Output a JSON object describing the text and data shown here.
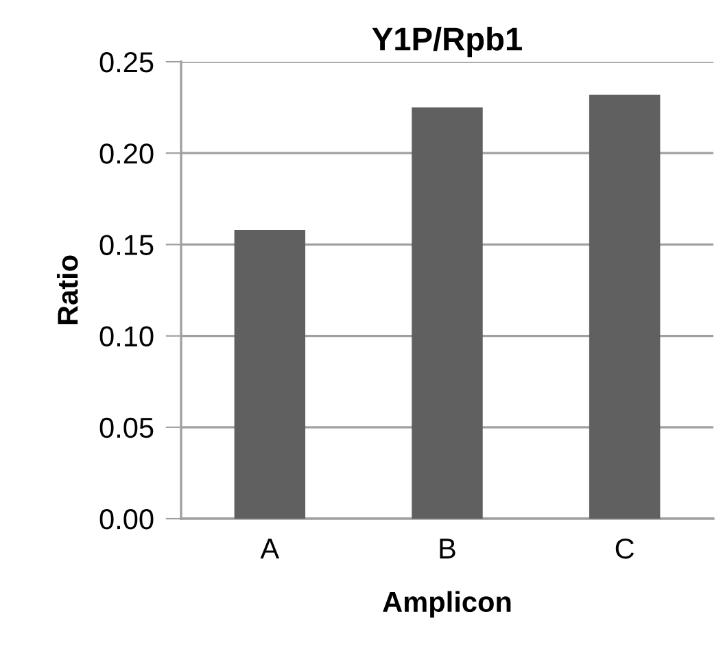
{
  "chart_data": {
    "type": "bar",
    "title": "Y1P/Rpb1",
    "xlabel": "Amplicon",
    "ylabel": "Ratio",
    "categories": [
      "A",
      "B",
      "C"
    ],
    "values": [
      0.158,
      0.225,
      0.232
    ],
    "color": "#606060",
    "ylim": [
      0,
      0.25
    ],
    "yticks": [
      {
        "value": 0,
        "label": "0.00"
      },
      {
        "value": 0.05,
        "label": "0.05"
      },
      {
        "value": 0.1,
        "label": "0.10"
      },
      {
        "value": 0.15,
        "label": "0.15"
      },
      {
        "value": 0.2,
        "label": "0.20"
      },
      {
        "value": 0.25,
        "label": "0.25"
      }
    ],
    "grid": "y",
    "legend": false
  }
}
